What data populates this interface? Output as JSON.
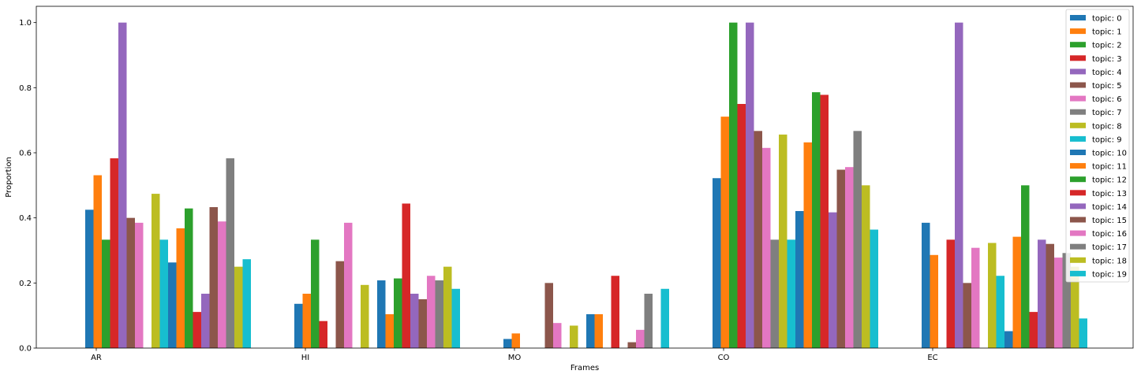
{
  "chart_data": {
    "type": "bar",
    "xlabel": "Frames",
    "ylabel": "Proportion",
    "ylim": [
      0,
      1.05
    ],
    "yticks": [
      "0.0",
      "0.2",
      "0.4",
      "0.6",
      "0.8",
      "1.0"
    ],
    "categories": [
      "AR",
      "HI",
      "MO",
      "CO",
      "EC"
    ],
    "legend_position": "top-right",
    "grid": false,
    "series": [
      {
        "name": "topic: 0",
        "color": "#1f77b4",
        "values": [
          0.425,
          0.136,
          0.028,
          0.522,
          0.385
        ]
      },
      {
        "name": "topic: 1",
        "color": "#ff7f0e",
        "values": [
          0.531,
          0.167,
          0.045,
          0.711,
          0.286
        ]
      },
      {
        "name": "topic: 2",
        "color": "#2ca02c",
        "values": [
          0.333,
          0.333,
          0.0,
          1.0,
          0.0
        ]
      },
      {
        "name": "topic: 3",
        "color": "#d62728",
        "values": [
          0.583,
          0.083,
          0.0,
          0.75,
          0.333
        ]
      },
      {
        "name": "topic: 4",
        "color": "#9467bd",
        "values": [
          1.0,
          0.0,
          0.0,
          1.0,
          1.0
        ]
      },
      {
        "name": "topic: 5",
        "color": "#8c564b",
        "values": [
          0.4,
          0.267,
          0.2,
          0.667,
          0.2
        ]
      },
      {
        "name": "topic: 6",
        "color": "#e377c2",
        "values": [
          0.385,
          0.385,
          0.077,
          0.615,
          0.308
        ]
      },
      {
        "name": "topic: 7",
        "color": "#7f7f7f",
        "values": [
          0.0,
          0.0,
          0.0,
          0.333,
          0.0
        ]
      },
      {
        "name": "topic: 8",
        "color": "#bcbd22",
        "values": [
          0.474,
          0.194,
          0.069,
          0.656,
          0.323
        ]
      },
      {
        "name": "topic: 9",
        "color": "#17becf",
        "values": [
          0.333,
          0.0,
          0.0,
          0.333,
          0.222
        ]
      },
      {
        "name": "topic: 10",
        "color": "#1f77b4",
        "values": [
          0.263,
          0.208,
          0.104,
          0.421,
          0.052
        ]
      },
      {
        "name": "topic: 11",
        "color": "#ff7f0e",
        "values": [
          0.368,
          0.104,
          0.104,
          0.632,
          0.342
        ]
      },
      {
        "name": "topic: 12",
        "color": "#2ca02c",
        "values": [
          0.429,
          0.214,
          0.0,
          0.786,
          0.5
        ]
      },
      {
        "name": "topic: 13",
        "color": "#d62728",
        "values": [
          0.111,
          0.444,
          0.222,
          0.778,
          0.111
        ]
      },
      {
        "name": "topic: 14",
        "color": "#9467bd",
        "values": [
          0.167,
          0.167,
          0.0,
          0.417,
          0.333
        ]
      },
      {
        "name": "topic: 15",
        "color": "#8c564b",
        "values": [
          0.433,
          0.15,
          0.018,
          0.548,
          0.32
        ]
      },
      {
        "name": "topic: 16",
        "color": "#e377c2",
        "values": [
          0.389,
          0.222,
          0.056,
          0.556,
          0.278
        ]
      },
      {
        "name": "topic: 17",
        "color": "#7f7f7f",
        "values": [
          0.583,
          0.208,
          0.167,
          0.667,
          0.292
        ]
      },
      {
        "name": "topic: 18",
        "color": "#bcbd22",
        "values": [
          0.25,
          0.25,
          0.0,
          0.5,
          0.25
        ]
      },
      {
        "name": "topic: 19",
        "color": "#17becf",
        "values": [
          0.273,
          0.182,
          0.182,
          0.364,
          0.091
        ]
      }
    ]
  }
}
